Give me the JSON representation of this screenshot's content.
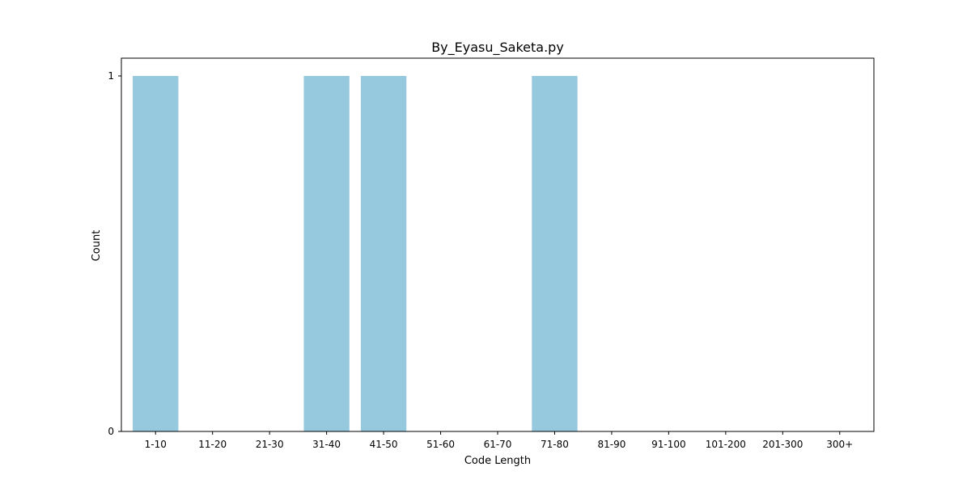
{
  "chart_data": {
    "type": "bar",
    "title": "By_Eyasu_Saketa.py",
    "xlabel": "Code Length",
    "ylabel": "Count",
    "categories": [
      "1-10",
      "11-20",
      "21-30",
      "31-40",
      "41-50",
      "51-60",
      "61-70",
      "71-80",
      "81-90",
      "91-100",
      "101-200",
      "201-300",
      "300+"
    ],
    "values": [
      1,
      0,
      0,
      1,
      1,
      0,
      0,
      1,
      0,
      0,
      0,
      0,
      0
    ],
    "ylim": [
      0,
      1.05
    ],
    "yticks": [
      0,
      1
    ],
    "grid": false,
    "bar_color": "#96c9de"
  }
}
